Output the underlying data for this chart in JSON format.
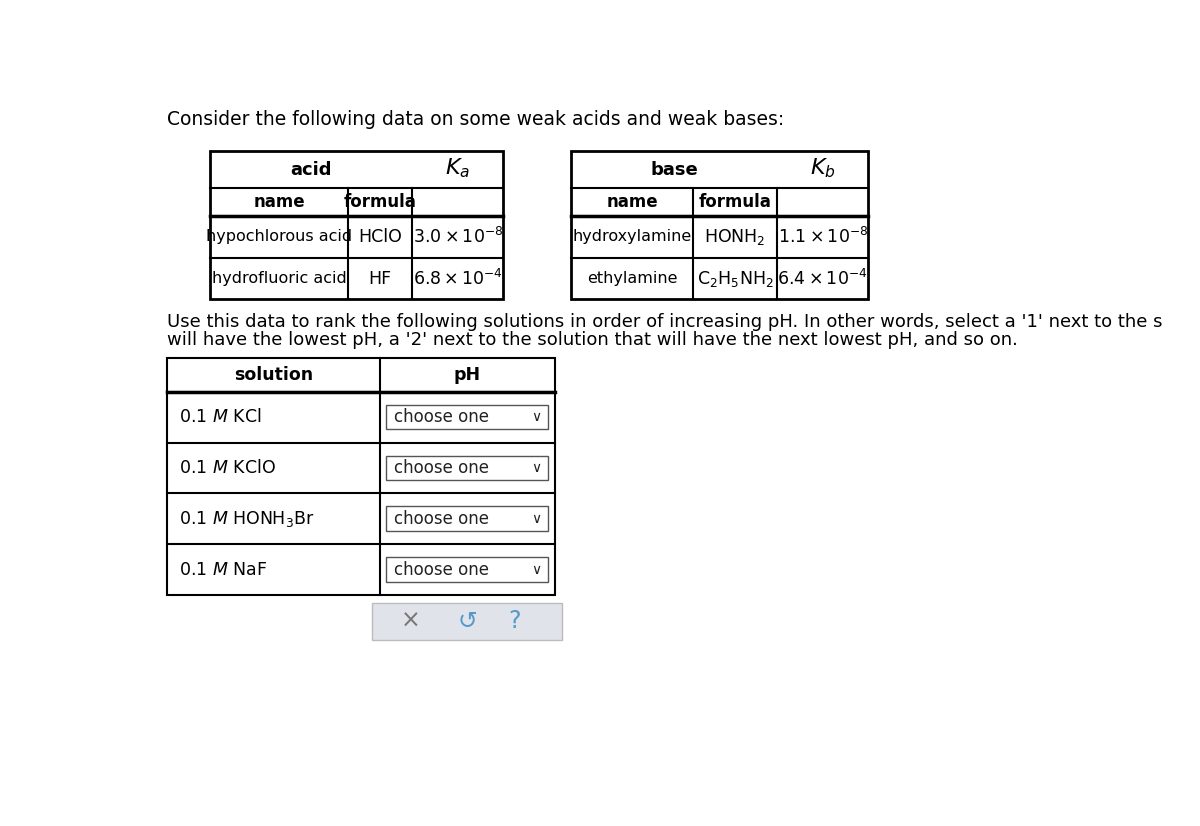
{
  "bg_color": "#ffffff",
  "title_text": "Consider the following data on some weak acids and weak bases:",
  "title_fontsize": 13.5,
  "acid_col_headers": [
    "name",
    "formula"
  ],
  "acid_rows": [
    [
      "hypochlorous acid",
      "HClO",
      "3.0",
      "-8"
    ],
    [
      "hydrofluoric acid",
      "HF",
      "6.8",
      "-4"
    ]
  ],
  "base_rows": [
    [
      "hydroxylamine",
      "HONH_2",
      "1.1",
      "-8"
    ],
    [
      "ethylamine",
      "C_2H_5NH_2",
      "6.4",
      "-4"
    ]
  ],
  "instruction_line1": "Use this data to rank the following solutions in order of increasing pH. In other words, select a '1' next to the s",
  "instruction_line2": "will have the lowest pH, a '2' next to the solution that will have the next lowest pH, and so on.",
  "sol_rows": [
    [
      "0.1 ",
      "M",
      " KCl"
    ],
    [
      "0.1 ",
      "M",
      " KClO"
    ],
    [
      "0.1 ",
      "M",
      " HONH_3Br"
    ],
    [
      "0.1 ",
      "M",
      " NaF"
    ]
  ]
}
